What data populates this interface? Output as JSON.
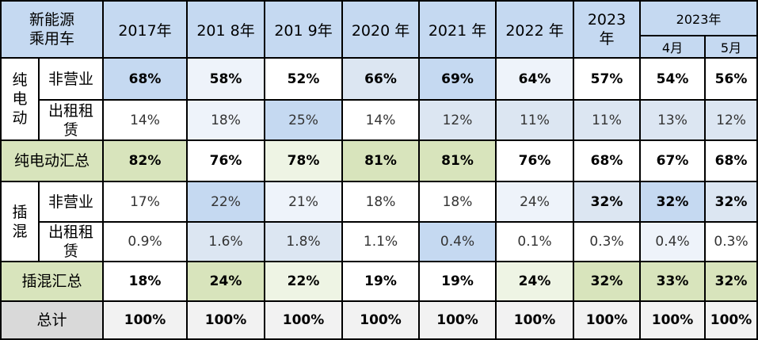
{
  "header": {
    "corner_line1": "新能源",
    "corner_line2": "乘用车",
    "years": [
      "2017年",
      "201 8年",
      "201 9年",
      "2020 年",
      "2021 年",
      "2022 年"
    ],
    "year2023_line1": "2023",
    "year2023_line2": "年",
    "group_2023": "2023年",
    "months": [
      "4月",
      "5月"
    ]
  },
  "groups": {
    "bev": [
      "纯",
      "电",
      "动"
    ],
    "phev": [
      "插",
      "混"
    ]
  },
  "row_labels": {
    "non_operating": "非营业",
    "rental_line1": "出租租",
    "rental_line2": "赁",
    "bev_total": "纯电动汇总",
    "phev_total": "插混汇总",
    "grand_total": "总计"
  },
  "rows": {
    "bev_non_operating": [
      "68%",
      "58%",
      "52%",
      "66%",
      "69%",
      "64%",
      "57%",
      "54%",
      "56%"
    ],
    "bev_rental": [
      "14%",
      "18%",
      "25%",
      "14%",
      "12%",
      "11%",
      "11%",
      "13%",
      "12%"
    ],
    "bev_total": [
      "82%",
      "76%",
      "78%",
      "81%",
      "81%",
      "76%",
      "68%",
      "67%",
      "68%"
    ],
    "phev_non_operating": [
      "17%",
      "22%",
      "21%",
      "18%",
      "18%",
      "24%",
      "32%",
      "32%",
      "32%"
    ],
    "phev_rental": [
      "0.9%",
      "1.6%",
      "1.8%",
      "1.1%",
      "0.4%",
      "0.1%",
      "0.3%",
      "0.4%",
      "0.3%"
    ],
    "phev_total": [
      "18%",
      "24%",
      "22%",
      "19%",
      "19%",
      "24%",
      "32%",
      "33%",
      "32%"
    ],
    "grand_total": [
      "100%",
      "100%",
      "100%",
      "100%",
      "100%",
      "100%",
      "100%",
      "100%",
      "100%"
    ]
  },
  "colors": {
    "header_blue": "#c5d9f1",
    "highlight_blue": "#c5d9f1",
    "light_blue": "#dce6f2",
    "total_green": "#d8e4bc",
    "total_grey": "#d9d9d9"
  }
}
